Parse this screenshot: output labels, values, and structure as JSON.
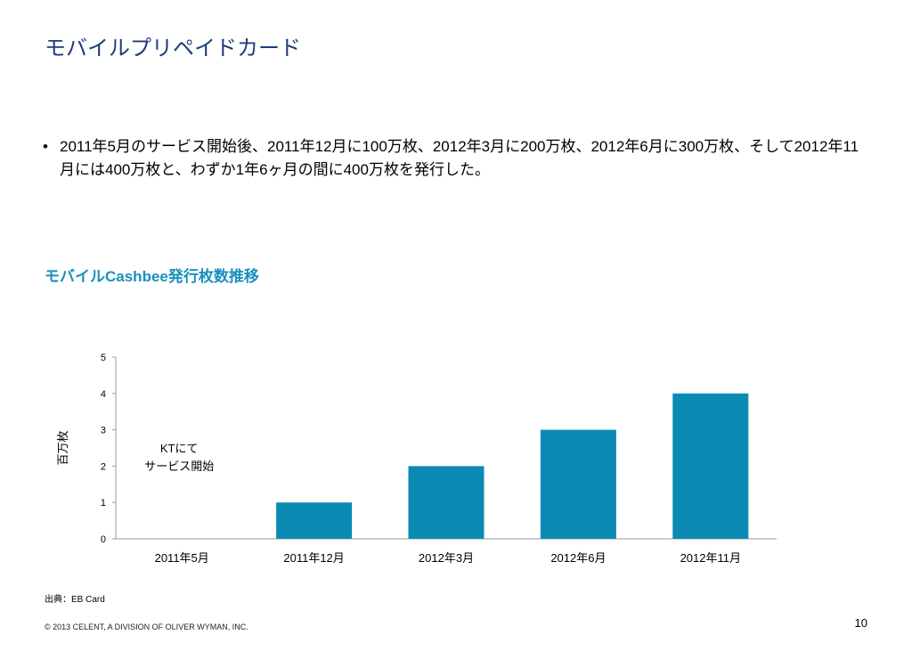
{
  "slide": {
    "title": "モバイルプリペイドカード",
    "bullet_marker": "•",
    "bullet": "2011年5月のサービス開始後、2011年12月に100万枚、2012年3月に200万枚、2012年6月に300万枚、そして2012年11月には400万枚と、わずか1年6ヶ月の間に400万枚を発行した。",
    "chart_title": "モバイルCashbee発行枚数推移",
    "source": "出典：EB Card",
    "copyright": "© 2013 CELENT, A DIVISION OF OLIVER WYMAN, INC.",
    "page_number": "10"
  },
  "chart_data": {
    "type": "bar",
    "categories": [
      "2011年5月",
      "2011年12月",
      "2012年3月",
      "2012年6月",
      "2012年11月"
    ],
    "values": [
      0,
      1,
      2,
      3,
      4
    ],
    "ylabel": "百万枚",
    "ylim": [
      0,
      5
    ],
    "yticks": [
      0,
      1,
      2,
      3,
      4,
      5
    ],
    "grid": false,
    "bar_color": "#0b8ab4",
    "annotation": {
      "lines": [
        "KTにて",
        "サービス開始"
      ],
      "category": "2011年5月"
    }
  }
}
